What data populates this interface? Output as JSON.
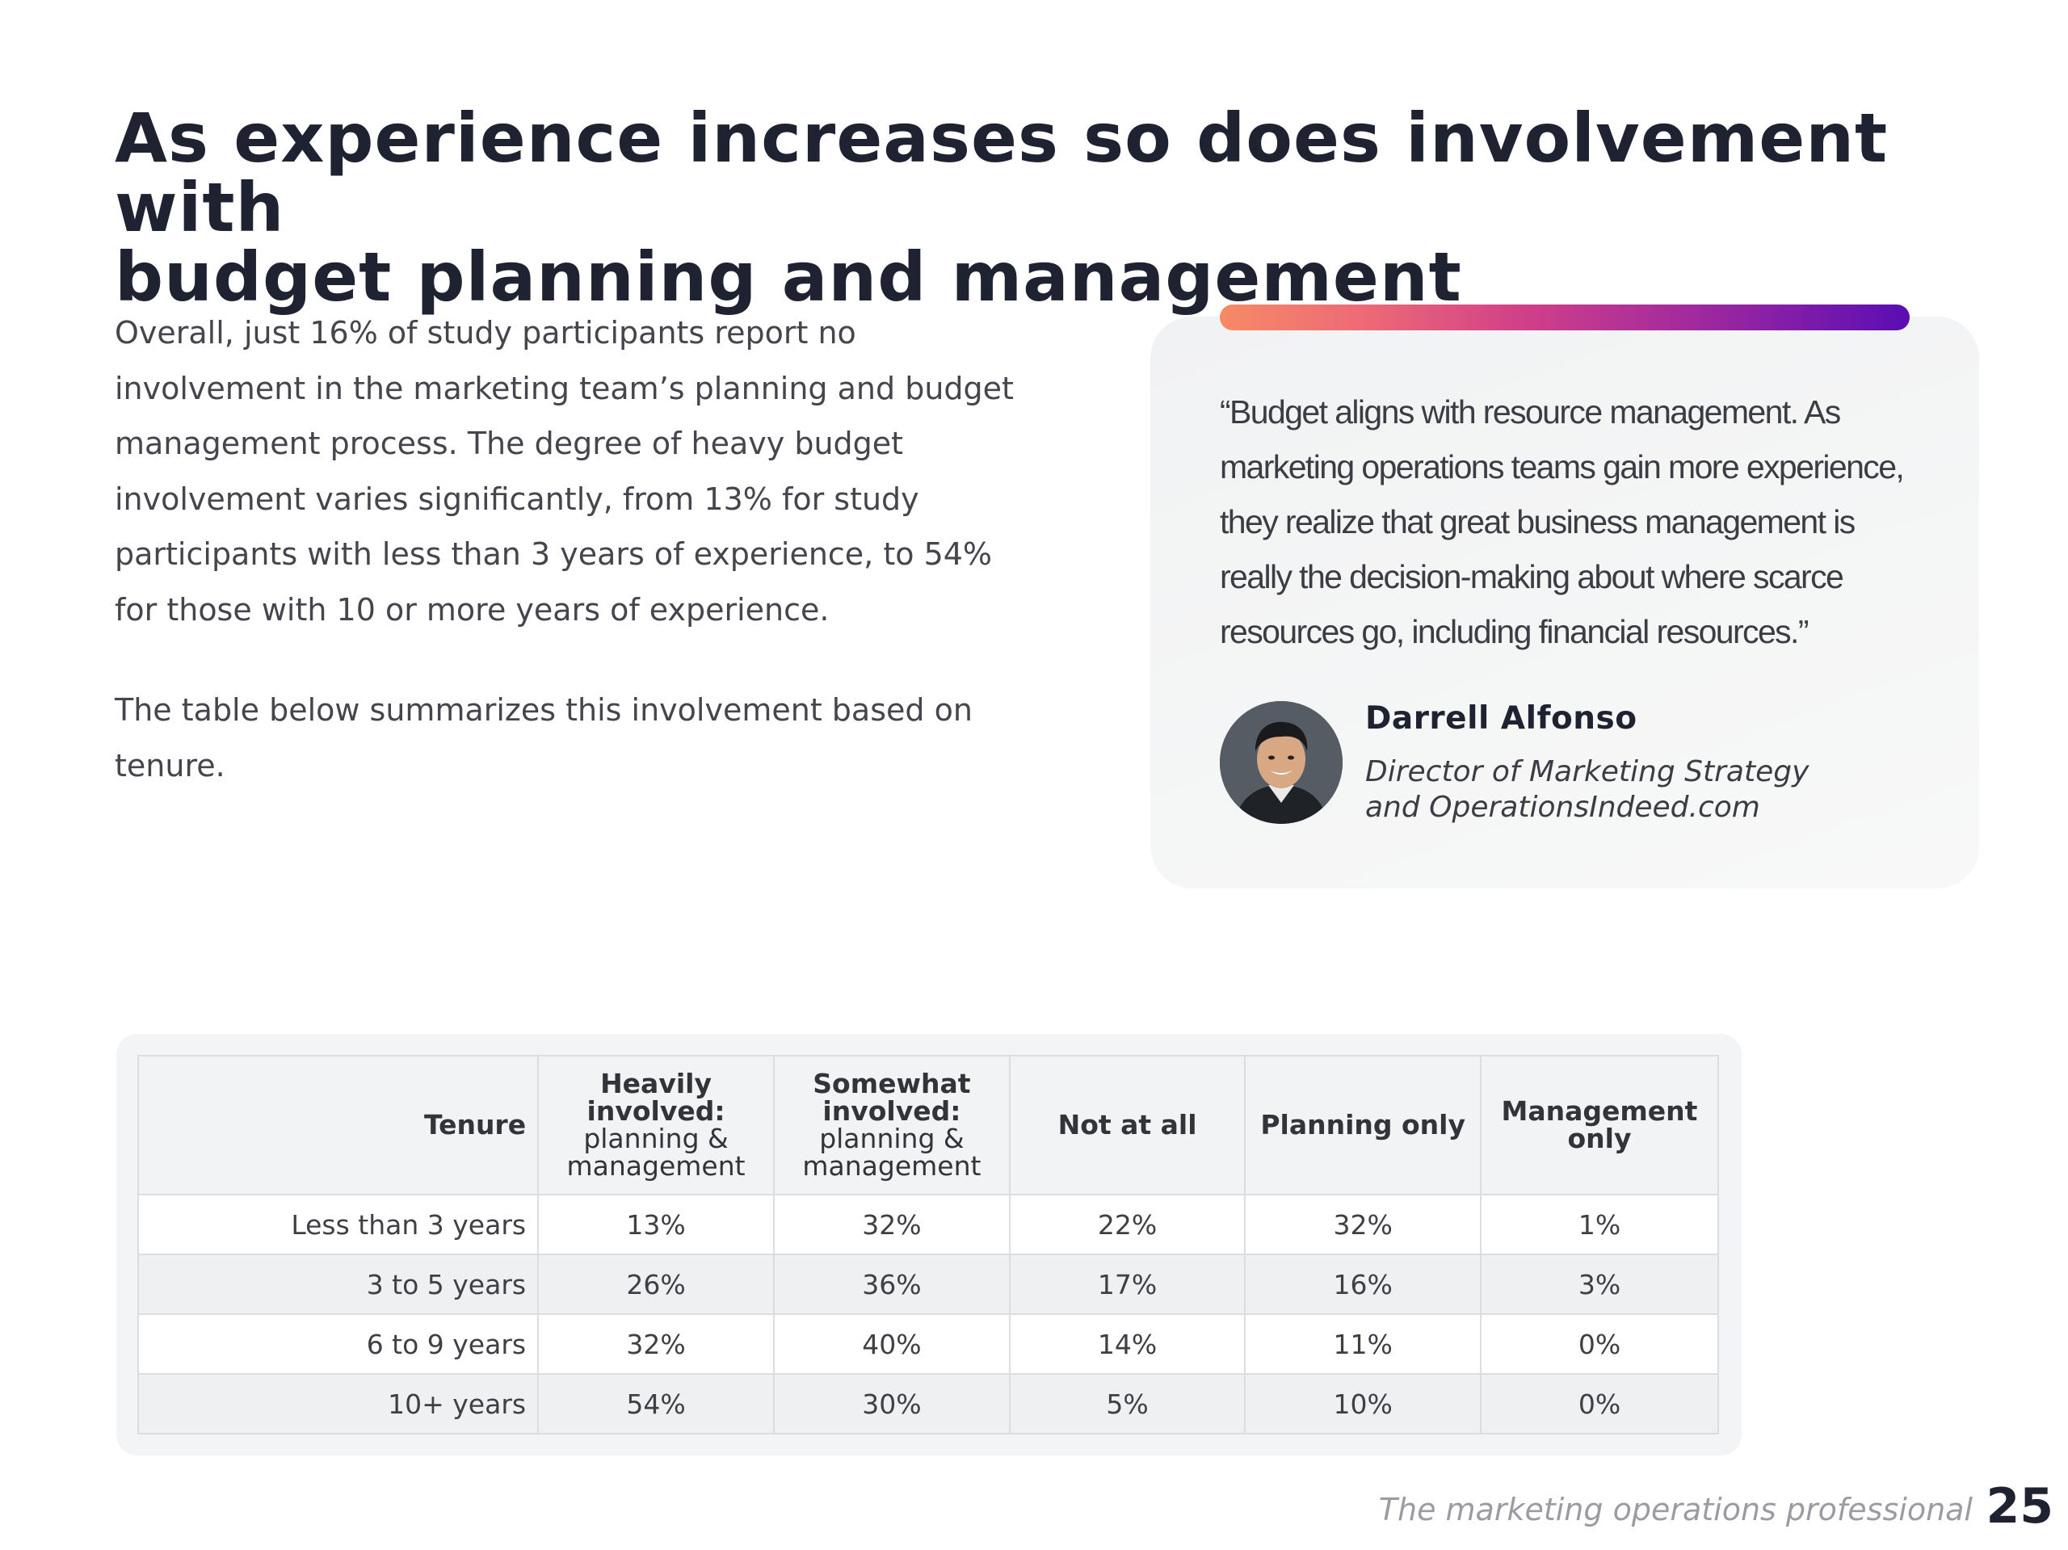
{
  "page": {
    "title_line1": "As experience increases so does involvement with",
    "title_line2": "budget planning and management",
    "paragraph1": "Overall, just 16% of study participants report no involvement in the marketing team’s planning and budget management process. The degree of heavy budget involvement varies significantly, from 13% for study participants with less than 3 years of experience, to 54% for those with 10 or more years of experience.",
    "paragraph2": "The table below summarizes this involvement based on tenure."
  },
  "quote": {
    "text": "“Budget aligns with resource management. As marketing operations teams gain more experience, they realize that great business management is really the decision-making about where scarce resources go, including financial resources.”",
    "name": "Darrell Alfonso",
    "role_line1": "Director of Marketing Strategy",
    "role_line2": "and OperationsIndeed.com",
    "bar_gradient": [
      "#f78a66",
      "#ec6877",
      "#cf3e8a",
      "#9a27a0",
      "#5a0db4"
    ]
  },
  "table": {
    "headers": {
      "tenure": "Tenure",
      "heavy_bold": "Heavily involved:",
      "heavy_light": "planning & management",
      "somewhat_bold": "Somewhat involved:",
      "somewhat_light": "planning & management",
      "not_at_all": "Not at all",
      "planning_only": "Planning only",
      "management_only": "Management only"
    },
    "rows": [
      {
        "tenure": "Less than 3 years",
        "heavy": "13%",
        "somewhat": "32%",
        "none": "22%",
        "planning": "32%",
        "management": "1%"
      },
      {
        "tenure": "3 to 5 years",
        "heavy": "26%",
        "somewhat": "36%",
        "none": "17%",
        "planning": "16%",
        "management": "3%"
      },
      {
        "tenure": "6 to 9 years",
        "heavy": "32%",
        "somewhat": "40%",
        "none": "14%",
        "planning": "11%",
        "management": "0%"
      },
      {
        "tenure": "10+ years",
        "heavy": "54%",
        "somewhat": "30%",
        "none": "5%",
        "planning": "10%",
        "management": "0%"
      }
    ]
  },
  "footer": {
    "caption": "The marketing operations professional",
    "page_number": "25"
  }
}
